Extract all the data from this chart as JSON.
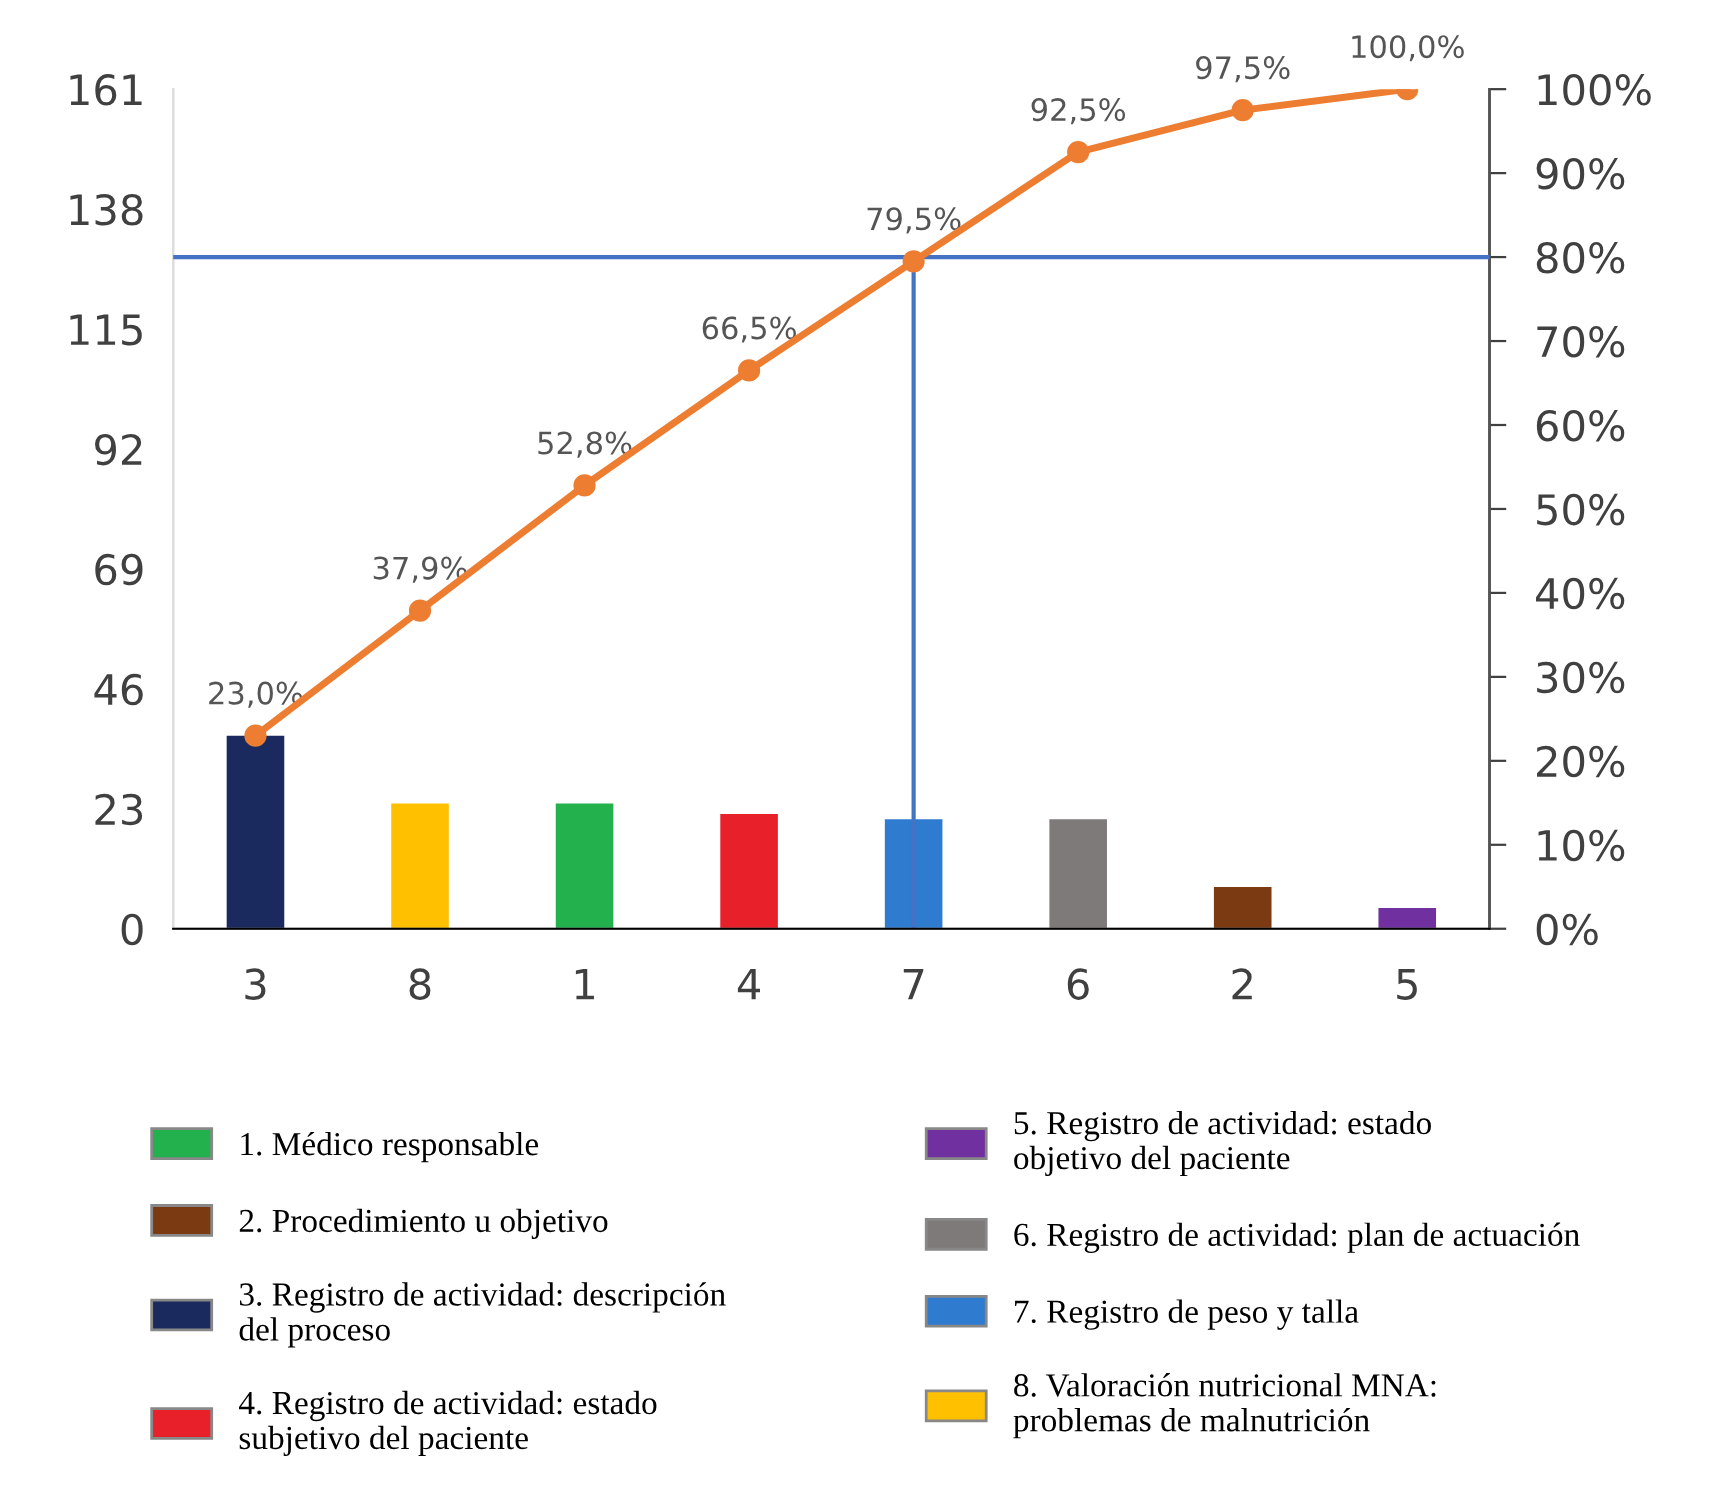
{
  "chart_data": {
    "type": "bar",
    "categories": [
      "3",
      "8",
      "1",
      "4",
      "7",
      "6",
      "2",
      "5"
    ],
    "series": [
      {
        "name": "1. Médico responsable",
        "color": "#22b14c",
        "values": [
          null,
          null,
          24,
          null,
          null,
          null,
          null,
          null
        ]
      },
      {
        "name": "2. Procedimiento u objetivo",
        "color": "#7b3a12",
        "values": [
          null,
          null,
          null,
          null,
          null,
          null,
          8,
          null
        ]
      },
      {
        "name": "3. Registro de actividad: descripción\ndel proceso",
        "color": "#1a2a5e",
        "values": [
          37,
          null,
          null,
          null,
          null,
          null,
          null,
          null
        ]
      },
      {
        "name": "4. Registro de actividad: estado\nsubjetivo del paciente",
        "color": "#e8202a",
        "values": [
          null,
          null,
          null,
          22,
          null,
          null,
          null,
          null
        ]
      },
      {
        "name": "5. Registro de actividad: estado\nobjetivo del paciente",
        "color": "#7030a0",
        "values": [
          null,
          null,
          null,
          null,
          null,
          null,
          null,
          4
        ]
      },
      {
        "name": "6. Registro de actividad: plan de actuación",
        "color": "#7f7a7a",
        "values": [
          null,
          null,
          null,
          null,
          null,
          21,
          null,
          null
        ]
      },
      {
        "name": "7. Registro de peso y talla",
        "color": "#2f7bd0",
        "values": [
          null,
          null,
          null,
          null,
          21,
          null,
          null,
          null
        ]
      },
      {
        "name": "8. Valoración nutricional MNA:\nproblemas de malnutrición",
        "color": "#ffc000",
        "values": [
          null,
          24,
          null,
          null,
          null,
          null,
          null,
          null
        ]
      },
      {
        "type": "line",
        "axis": "y2",
        "color": "#ed7d31",
        "values": [
          23.0,
          37.9,
          52.8,
          66.5,
          79.5,
          92.5,
          97.5,
          100.0
        ],
        "value_labels": [
          "23,0%",
          "37,9%",
          "52,8%",
          "66,5%",
          "79,5%",
          "92,5%",
          "97,5%",
          "100,0%"
        ]
      }
    ],
    "ylim": [
      0,
      161
    ],
    "yticks": [
      0,
      23,
      46,
      69,
      92,
      115,
      138,
      161
    ],
    "y2lim": [
      0,
      100
    ],
    "y2ticks": [
      {
        "value": 0,
        "label": "0%"
      },
      {
        "value": 10,
        "label": "10%"
      },
      {
        "value": 20,
        "label": "20%"
      },
      {
        "value": 30,
        "label": "30%"
      },
      {
        "value": 40,
        "label": "40%"
      },
      {
        "value": 50,
        "label": "50%"
      },
      {
        "value": 60,
        "label": "60%"
      },
      {
        "value": 70,
        "label": "70%"
      },
      {
        "value": 80,
        "label": "80%"
      },
      {
        "value": 90,
        "label": "90%"
      },
      {
        "value": 100,
        "label": "100%"
      }
    ],
    "ref_lines": [
      {
        "axis": "y2",
        "value": 80,
        "color": "#4472c4"
      },
      {
        "axis": "x",
        "value": "7",
        "color": "#4472c4"
      }
    ],
    "marker": "circle",
    "legend": "bottom"
  }
}
